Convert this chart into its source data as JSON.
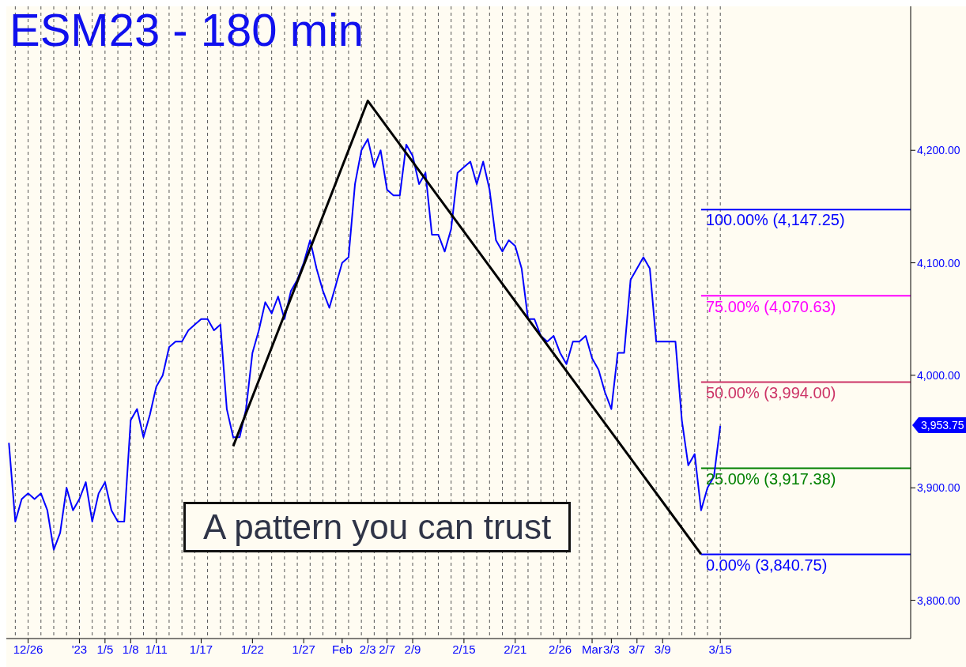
{
  "chart_data": {
    "type": "line",
    "title": "ESM23 - 180 min",
    "categories": [
      null,
      null,
      null,
      "12/26",
      null,
      null,
      null,
      null,
      null,
      null,
      null,
      "'23",
      null,
      null,
      null,
      "1/5",
      null,
      null,
      null,
      "1/8",
      null,
      null,
      null,
      "1/11",
      null,
      null,
      null,
      null,
      null,
      null,
      "1/17",
      null,
      null,
      null,
      null,
      null,
      null,
      null,
      "1/22",
      null,
      null,
      null,
      null,
      null,
      null,
      null,
      "1/27",
      null,
      null,
      null,
      null,
      null,
      "Feb",
      null,
      null,
      null,
      "2/3",
      null,
      null,
      "2/7",
      null,
      null,
      null,
      "2/9",
      null,
      null,
      null,
      null,
      null,
      null,
      null,
      "2/15",
      null,
      null,
      null,
      null,
      null,
      null,
      null,
      "2/21",
      null,
      null,
      null,
      null,
      null,
      null,
      "2/26",
      null,
      null,
      null,
      null,
      "Mar",
      null,
      null,
      "3/3",
      null,
      null,
      null,
      "3/7",
      null,
      null,
      null,
      "3/9",
      null,
      null,
      null,
      null,
      null,
      null,
      null,
      null,
      "3/15",
      null,
      null,
      null,
      null,
      null,
      null,
      null,
      null,
      null,
      null,
      null,
      null,
      null,
      null,
      null,
      null,
      null,
      null,
      null,
      null,
      null,
      null,
      null,
      null,
      null,
      null,
      null,
      null,
      null
    ],
    "series": [
      {
        "color": "#0000ff",
        "values": [
          3940,
          3870,
          3890,
          3895,
          3890,
          3895,
          3880,
          3845,
          3860,
          3900,
          3880,
          3890,
          3905,
          3870,
          3895,
          3905,
          3880,
          3870,
          3870,
          3960,
          3970,
          3945,
          3965,
          3990,
          4000,
          4025,
          4030,
          4030,
          4040,
          4045,
          4050,
          4050,
          4040,
          4045,
          3970,
          3945,
          3945,
          3970,
          4020,
          4040,
          4065,
          4055,
          4070,
          4050,
          4075,
          4085,
          4100,
          4120,
          4095,
          4075,
          4060,
          4080,
          4100,
          4105,
          4170,
          4200,
          4210,
          4185,
          4200,
          4165,
          4160,
          4160,
          4205,
          4195,
          4170,
          4180,
          4125,
          4125,
          4110,
          4130,
          4180,
          4185,
          4190,
          4170,
          4190,
          4165,
          4120,
          4110,
          4120,
          4115,
          4095,
          4050,
          4050,
          4035,
          4030,
          4035,
          4020,
          4010,
          4030,
          4030,
          4035,
          4015,
          4005,
          3985,
          3970,
          4020,
          4020,
          4085,
          4095,
          4105,
          4095,
          4030,
          4030,
          4030,
          4030,
          3960,
          3920,
          3930,
          3880,
          3900,
          3910,
          3955,
          null,
          null,
          null,
          null,
          null,
          null,
          null,
          null,
          null,
          null,
          null,
          null,
          null,
          null,
          null,
          null,
          null,
          null,
          null,
          null,
          null,
          null,
          null,
          null,
          null,
          null,
          null,
          null,
          null
        ]
      },
      {
        "color": "#000000",
        "values": [
          null,
          null,
          null,
          null,
          null,
          null,
          null,
          null,
          null,
          null,
          null,
          null,
          null,
          null,
          null,
          null,
          null,
          null,
          null,
          null,
          null,
          null,
          null,
          null,
          null,
          null,
          null,
          null,
          null,
          null,
          null,
          null,
          null,
          null,
          null,
          3937,
          null,
          null,
          null,
          null,
          null,
          null,
          null,
          null,
          null,
          null,
          null,
          null,
          null,
          null,
          null,
          null,
          null,
          null,
          null,
          null,
          4244,
          null,
          null,
          null,
          null,
          null,
          null,
          null,
          null,
          null,
          null,
          null,
          null,
          null,
          null,
          null,
          null,
          null,
          null,
          null,
          null,
          null,
          null,
          null,
          null,
          null,
          null,
          null,
          null,
          null,
          null,
          null,
          null,
          null,
          null,
          null,
          null,
          null,
          null,
          null,
          null,
          null,
          null,
          null,
          null,
          null,
          null,
          null,
          null,
          null,
          null,
          null,
          3841,
          null,
          null,
          null,
          null,
          null,
          null,
          null,
          null,
          null,
          null,
          null,
          null,
          null,
          null,
          null,
          null,
          null,
          null,
          null,
          null,
          null,
          null,
          null,
          null,
          null,
          null,
          null,
          null,
          null,
          null,
          null,
          null
        ]
      }
    ],
    "ylim": [
      3766,
      4328
    ],
    "yticks": [
      {
        "value": 3800,
        "label": "3,800.00"
      },
      {
        "value": 3900,
        "label": "3,900.00"
      },
      {
        "value": 4000,
        "label": "4,000.00"
      },
      {
        "value": 4100,
        "label": "4,100.00"
      },
      {
        "value": 4200,
        "label": "4,200.00"
      }
    ],
    "grid": "x",
    "marker": "none",
    "line_style": "solid",
    "ref_lines": [
      {
        "axis": "y",
        "value": 4147.25,
        "label": "100.00% (4,147.25)",
        "color": "#0000ff"
      },
      {
        "axis": "y",
        "value": 4070.63,
        "label": "75.00% (4,070.63)",
        "color": "#ff00ff"
      },
      {
        "axis": "y",
        "value": 3994.0,
        "label": "50.00% (3,994.00)",
        "color": "#cc3366"
      },
      {
        "axis": "y",
        "value": 3917.38,
        "label": "25.00% (3,917.38)",
        "color": "#008000"
      },
      {
        "axis": "y",
        "value": 3840.75,
        "label": "0.00% (3,840.75)",
        "color": "#0000ff"
      }
    ],
    "annotations": [
      "3,953.75",
      "A pattern you can trust"
    ]
  }
}
